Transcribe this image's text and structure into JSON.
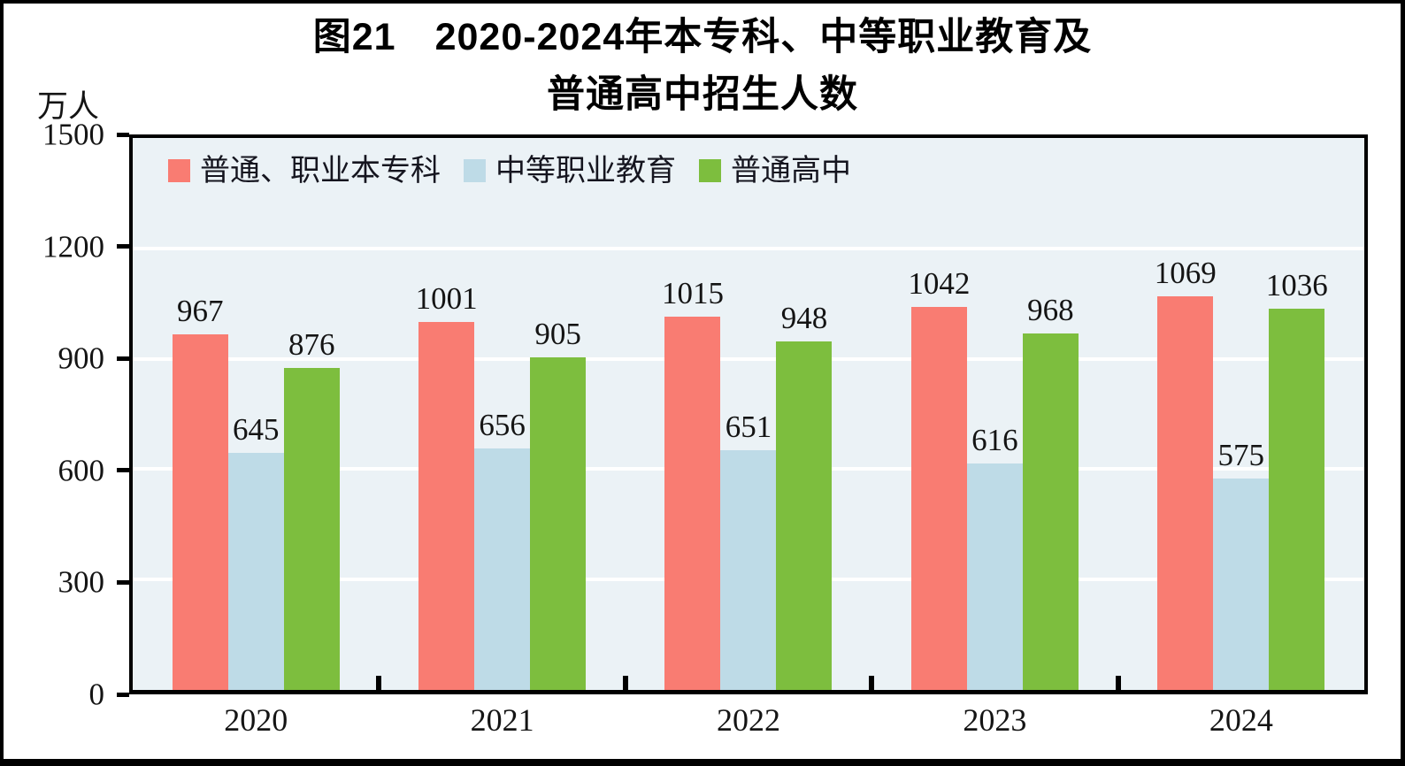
{
  "title": {
    "line1": "图21　2020-2024年本专科、中等职业教育及",
    "line2": "普通高中招生人数"
  },
  "unit_label": "万人",
  "chart_data": {
    "type": "bar",
    "title": "图21 2020-2024年本专科、中等职业教育及普通高中招生人数",
    "ylabel": "万人",
    "categories": [
      "2020",
      "2021",
      "2022",
      "2023",
      "2024"
    ],
    "series": [
      {
        "name": "普通、职业本专科",
        "color": "#F97C72",
        "values": [
          967,
          1001,
          1015,
          1042,
          1069
        ]
      },
      {
        "name": "中等职业教育",
        "color": "#BEDBE7",
        "values": [
          645,
          656,
          651,
          616,
          575
        ]
      },
      {
        "name": "普通高中",
        "color": "#7DBE3E",
        "values": [
          876,
          905,
          948,
          968,
          1036
        ]
      }
    ],
    "ylim": [
      0,
      1500
    ],
    "yticks": [
      0,
      300,
      600,
      900,
      1200,
      1500
    ],
    "grid": true,
    "gridline_color": "#FFFFFF",
    "plot_background": "#EBF2F6",
    "legend_position": "top-left"
  }
}
